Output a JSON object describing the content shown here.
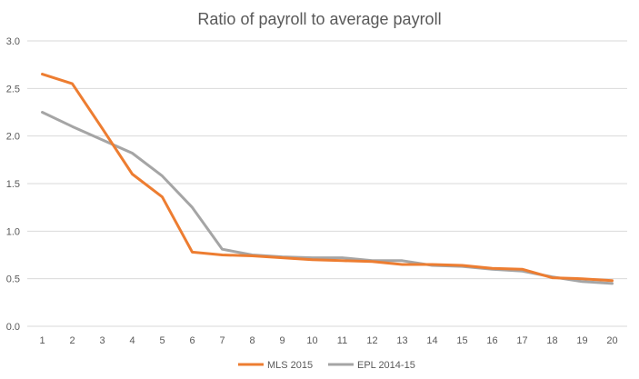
{
  "chart_data": {
    "type": "line",
    "title": "Ratio of payroll to average payroll",
    "xlabel": "",
    "ylabel": "",
    "x": [
      1,
      2,
      3,
      4,
      5,
      6,
      7,
      8,
      9,
      10,
      11,
      12,
      13,
      14,
      15,
      16,
      17,
      18,
      19,
      20
    ],
    "ylim": [
      0,
      3.0
    ],
    "yticks": [
      "0.0",
      "0.5",
      "1.0",
      "1.5",
      "2.0",
      "2.5",
      "3.0"
    ],
    "grid": true,
    "legend_position": "bottom",
    "series": [
      {
        "name": "MLS 2015",
        "color": "#ed7d31",
        "values": [
          2.65,
          2.55,
          2.08,
          1.6,
          1.36,
          0.78,
          0.75,
          0.74,
          0.72,
          0.7,
          0.69,
          0.68,
          0.65,
          0.65,
          0.64,
          0.61,
          0.6,
          0.51,
          0.5,
          0.48
        ]
      },
      {
        "name": "EPL 2014-15",
        "color": "#a5a5a5",
        "values": [
          2.25,
          2.1,
          1.96,
          1.82,
          1.58,
          1.25,
          0.81,
          0.75,
          0.73,
          0.72,
          0.72,
          0.69,
          0.69,
          0.64,
          0.63,
          0.6,
          0.58,
          0.52,
          0.47,
          0.45
        ]
      }
    ]
  }
}
